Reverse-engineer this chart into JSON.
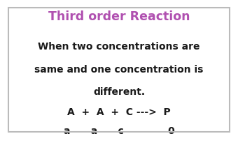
{
  "title": "Third order Reaction",
  "title_color": "#b050b0",
  "background_color": "#ffffff",
  "border_color": "#bbbbbb",
  "line1": "When two concentrations are",
  "line2": "same and one concentration is",
  "line3": "different.",
  "line4": "A  +  A  +  C --->  P",
  "line5": "a      a      c             0",
  "text_color": "#1a1a1a",
  "body_fontsize": 10.0,
  "title_fontsize": 12.5
}
